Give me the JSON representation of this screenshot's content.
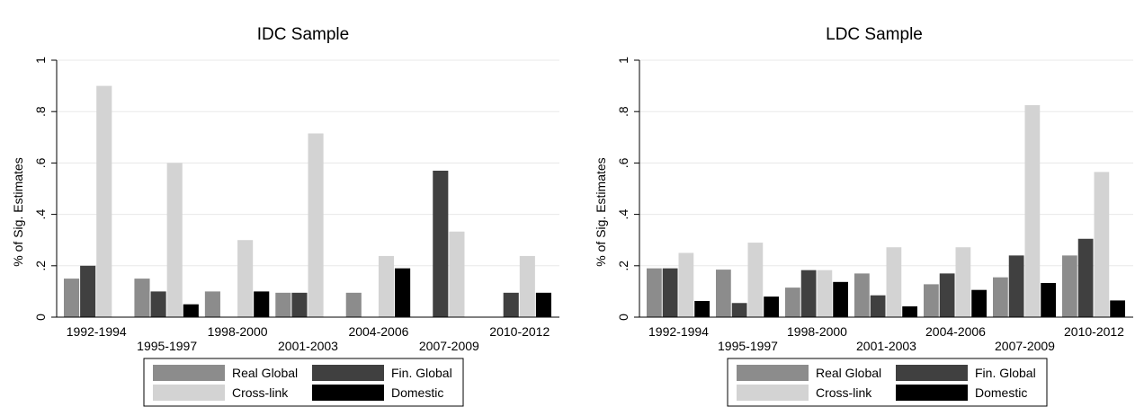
{
  "chart_data": [
    {
      "type": "bar",
      "title": "IDC Sample",
      "xlabel": "",
      "ylabel": "% of Sig. Estimates",
      "ylim": [
        0,
        1
      ],
      "yticks": [
        "0",
        ".2",
        ".4",
        ".6",
        ".8",
        "1"
      ],
      "grid": true,
      "legend_position": "bottom",
      "categories": [
        "1992-1994",
        "1995-1997",
        "1998-2000",
        "2001-2003",
        "2004-2006",
        "2007-2009",
        "2010-2012"
      ],
      "series": [
        {
          "name": "Real Global",
          "color": "#8c8c8c",
          "values": [
            0.15,
            0.15,
            0.1,
            0.095,
            0.095,
            0,
            0
          ]
        },
        {
          "name": "Fin. Global",
          "color": "#404040",
          "values": [
            0.2,
            0.1,
            0,
            0.095,
            0,
            0.57,
            0.095
          ]
        },
        {
          "name": "Cross-link",
          "color": "#d3d3d3",
          "values": [
            0.9,
            0.6,
            0.3,
            0.715,
            0.238,
            0.333,
            0.238
          ]
        },
        {
          "name": "Domestic",
          "color": "#000000",
          "values": [
            0,
            0.05,
            0.1,
            0,
            0.19,
            0,
            0.095
          ]
        }
      ]
    },
    {
      "type": "bar",
      "title": "LDC Sample",
      "xlabel": "",
      "ylabel": "% of Sig. Estimates",
      "ylim": [
        0,
        1
      ],
      "yticks": [
        "0",
        ".2",
        ".4",
        ".6",
        ".8",
        "1"
      ],
      "grid": true,
      "legend_position": "bottom",
      "categories": [
        "1992-1994",
        "1995-1997",
        "1998-2000",
        "2001-2003",
        "2004-2006",
        "2007-2009",
        "2010-2012"
      ],
      "series": [
        {
          "name": "Real Global",
          "color": "#8c8c8c",
          "values": [
            0.19,
            0.185,
            0.115,
            0.17,
            0.128,
            0.155,
            0.24
          ]
        },
        {
          "name": "Fin. Global",
          "color": "#404040",
          "values": [
            0.19,
            0.055,
            0.183,
            0.085,
            0.17,
            0.24,
            0.305
          ]
        },
        {
          "name": "Cross-link",
          "color": "#d3d3d3",
          "values": [
            0.25,
            0.29,
            0.183,
            0.272,
            0.272,
            0.825,
            0.565
          ]
        },
        {
          "name": "Domestic",
          "color": "#000000",
          "values": [
            0.063,
            0.08,
            0.137,
            0.042,
            0.106,
            0.133,
            0.065
          ]
        }
      ]
    }
  ]
}
